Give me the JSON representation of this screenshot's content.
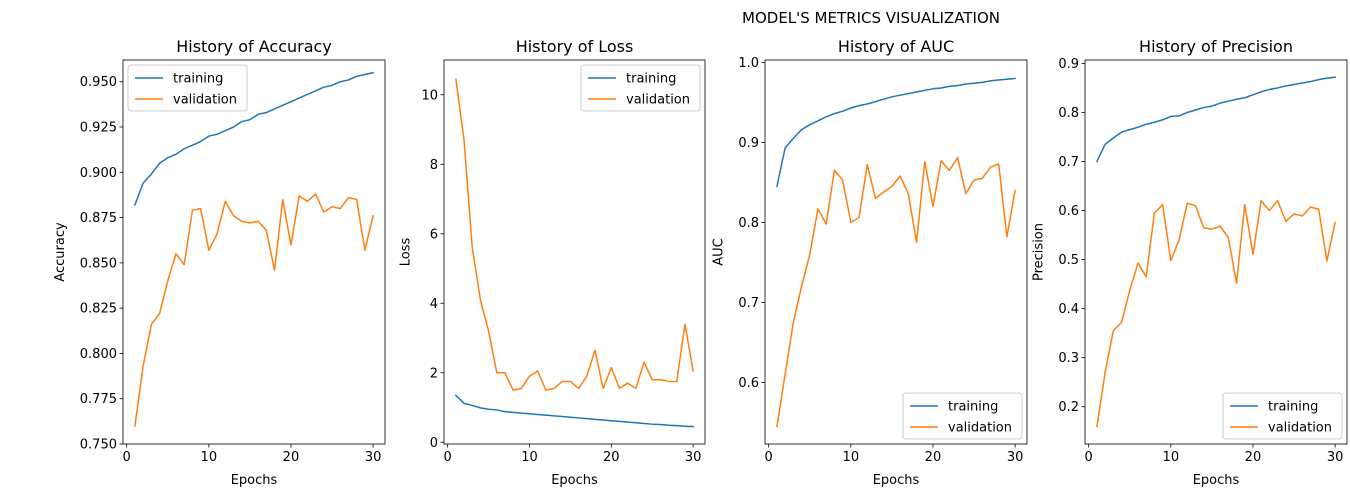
{
  "suptitle": "MODEL'S METRICS VISUALIZATION",
  "colors": {
    "training": "#1f77b4",
    "validation": "#ff7f0e"
  },
  "chart_data": [
    {
      "type": "line",
      "title": "History of Accuracy",
      "xlabel": "Epochs",
      "ylabel": "Accuracy",
      "xlim": [
        -0.45,
        31.45
      ],
      "ylim": [
        0.75,
        0.962
      ],
      "xticks": [
        0,
        10,
        20,
        30
      ],
      "yticks": [
        0.75,
        0.775,
        0.8,
        0.825,
        0.85,
        0.875,
        0.9,
        0.925,
        0.95
      ],
      "ytick_labels": [
        "0.750",
        "0.775",
        "0.800",
        "0.825",
        "0.850",
        "0.875",
        "0.900",
        "0.925",
        "0.950"
      ],
      "legend": "upper-left",
      "x": [
        1,
        2,
        3,
        4,
        5,
        6,
        7,
        8,
        9,
        10,
        11,
        12,
        13,
        14,
        15,
        16,
        17,
        18,
        19,
        20,
        21,
        22,
        23,
        24,
        25,
        26,
        27,
        28,
        29,
        30
      ],
      "series": [
        {
          "name": "training",
          "values": [
            0.882,
            0.894,
            0.899,
            0.905,
            0.908,
            0.91,
            0.913,
            0.915,
            0.917,
            0.92,
            0.921,
            0.923,
            0.925,
            0.928,
            0.929,
            0.932,
            0.933,
            0.935,
            0.937,
            0.939,
            0.941,
            0.943,
            0.945,
            0.947,
            0.948,
            0.95,
            0.951,
            0.953,
            0.954,
            0.955
          ]
        },
        {
          "name": "validation",
          "values": [
            0.76,
            0.793,
            0.816,
            0.822,
            0.84,
            0.855,
            0.849,
            0.879,
            0.88,
            0.857,
            0.866,
            0.884,
            0.876,
            0.873,
            0.872,
            0.873,
            0.868,
            0.846,
            0.885,
            0.86,
            0.887,
            0.884,
            0.888,
            0.878,
            0.881,
            0.88,
            0.886,
            0.885,
            0.857,
            0.876
          ]
        }
      ]
    },
    {
      "type": "line",
      "title": "History of Loss",
      "xlabel": "Epochs",
      "ylabel": "Loss",
      "xlim": [
        -0.45,
        31.45
      ],
      "ylim": [
        -0.05,
        11.0
      ],
      "xticks": [
        0,
        10,
        20,
        30
      ],
      "yticks": [
        0,
        2,
        4,
        6,
        8,
        10
      ],
      "ytick_labels": [
        "0",
        "2",
        "4",
        "6",
        "8",
        "10"
      ],
      "legend": "upper-right",
      "x": [
        1,
        2,
        3,
        4,
        5,
        6,
        7,
        8,
        9,
        10,
        11,
        12,
        13,
        14,
        15,
        16,
        17,
        18,
        19,
        20,
        21,
        22,
        23,
        24,
        25,
        26,
        27,
        28,
        29,
        30
      ],
      "series": [
        {
          "name": "training",
          "values": [
            1.35,
            1.12,
            1.06,
            0.99,
            0.95,
            0.93,
            0.88,
            0.86,
            0.84,
            0.82,
            0.8,
            0.78,
            0.76,
            0.74,
            0.72,
            0.7,
            0.68,
            0.66,
            0.64,
            0.62,
            0.6,
            0.58,
            0.56,
            0.54,
            0.52,
            0.51,
            0.49,
            0.48,
            0.46,
            0.45
          ]
        },
        {
          "name": "validation",
          "values": [
            10.45,
            8.7,
            5.6,
            4.1,
            3.2,
            2.0,
            2.0,
            1.5,
            1.55,
            1.9,
            2.05,
            1.5,
            1.55,
            1.75,
            1.75,
            1.55,
            1.9,
            2.65,
            1.55,
            2.15,
            1.55,
            1.7,
            1.55,
            2.3,
            1.8,
            1.8,
            1.75,
            1.75,
            3.4,
            2.05
          ]
        }
      ]
    },
    {
      "type": "line",
      "title": "History of AUC",
      "xlabel": "Epochs",
      "ylabel": "AUC",
      "xlim": [
        -0.45,
        31.45
      ],
      "ylim": [
        0.523,
        1.003
      ],
      "xticks": [
        0,
        10,
        20,
        30
      ],
      "yticks": [
        0.6,
        0.7,
        0.8,
        0.9,
        1.0
      ],
      "ytick_labels": [
        "0.6",
        "0.7",
        "0.8",
        "0.9",
        "1.0"
      ],
      "legend": "lower-right",
      "x": [
        1,
        2,
        3,
        4,
        5,
        6,
        7,
        8,
        9,
        10,
        11,
        12,
        13,
        14,
        15,
        16,
        17,
        18,
        19,
        20,
        21,
        22,
        23,
        24,
        25,
        26,
        27,
        28,
        29,
        30
      ],
      "series": [
        {
          "name": "training",
          "values": [
            0.845,
            0.893,
            0.905,
            0.916,
            0.922,
            0.927,
            0.932,
            0.936,
            0.939,
            0.943,
            0.946,
            0.948,
            0.951,
            0.954,
            0.957,
            0.959,
            0.961,
            0.963,
            0.965,
            0.967,
            0.968,
            0.97,
            0.971,
            0.973,
            0.974,
            0.975,
            0.977,
            0.978,
            0.979,
            0.98
          ]
        },
        {
          "name": "validation",
          "values": [
            0.545,
            0.61,
            0.675,
            0.72,
            0.76,
            0.817,
            0.798,
            0.865,
            0.853,
            0.8,
            0.806,
            0.872,
            0.83,
            0.838,
            0.845,
            0.858,
            0.836,
            0.775,
            0.876,
            0.82,
            0.877,
            0.865,
            0.881,
            0.836,
            0.853,
            0.855,
            0.869,
            0.873,
            0.782,
            0.84
          ]
        }
      ]
    },
    {
      "type": "line",
      "title": "History of Precision",
      "xlabel": "Epochs",
      "ylabel": "Precision",
      "xlim": [
        -0.45,
        31.45
      ],
      "ylim": [
        0.124,
        0.907
      ],
      "xticks": [
        0,
        10,
        20,
        30
      ],
      "yticks": [
        0.2,
        0.3,
        0.4,
        0.5,
        0.6,
        0.7,
        0.8,
        0.9
      ],
      "ytick_labels": [
        "0.2",
        "0.3",
        "0.4",
        "0.5",
        "0.6",
        "0.7",
        "0.8",
        "0.9"
      ],
      "legend": "lower-right",
      "x": [
        1,
        2,
        3,
        4,
        5,
        6,
        7,
        8,
        9,
        10,
        11,
        12,
        13,
        14,
        15,
        16,
        17,
        18,
        19,
        20,
        21,
        22,
        23,
        24,
        25,
        26,
        27,
        28,
        29,
        30
      ],
      "series": [
        {
          "name": "training",
          "values": [
            0.7,
            0.735,
            0.748,
            0.76,
            0.765,
            0.77,
            0.776,
            0.78,
            0.785,
            0.792,
            0.793,
            0.8,
            0.805,
            0.81,
            0.813,
            0.819,
            0.823,
            0.827,
            0.83,
            0.836,
            0.842,
            0.847,
            0.85,
            0.854,
            0.857,
            0.86,
            0.863,
            0.867,
            0.87,
            0.872
          ]
        },
        {
          "name": "validation",
          "values": [
            0.16,
            0.27,
            0.355,
            0.372,
            0.437,
            0.493,
            0.465,
            0.595,
            0.612,
            0.498,
            0.54,
            0.615,
            0.61,
            0.565,
            0.562,
            0.568,
            0.545,
            0.452,
            0.612,
            0.511,
            0.62,
            0.6,
            0.62,
            0.578,
            0.593,
            0.589,
            0.607,
            0.603,
            0.497,
            0.576
          ]
        }
      ]
    }
  ]
}
